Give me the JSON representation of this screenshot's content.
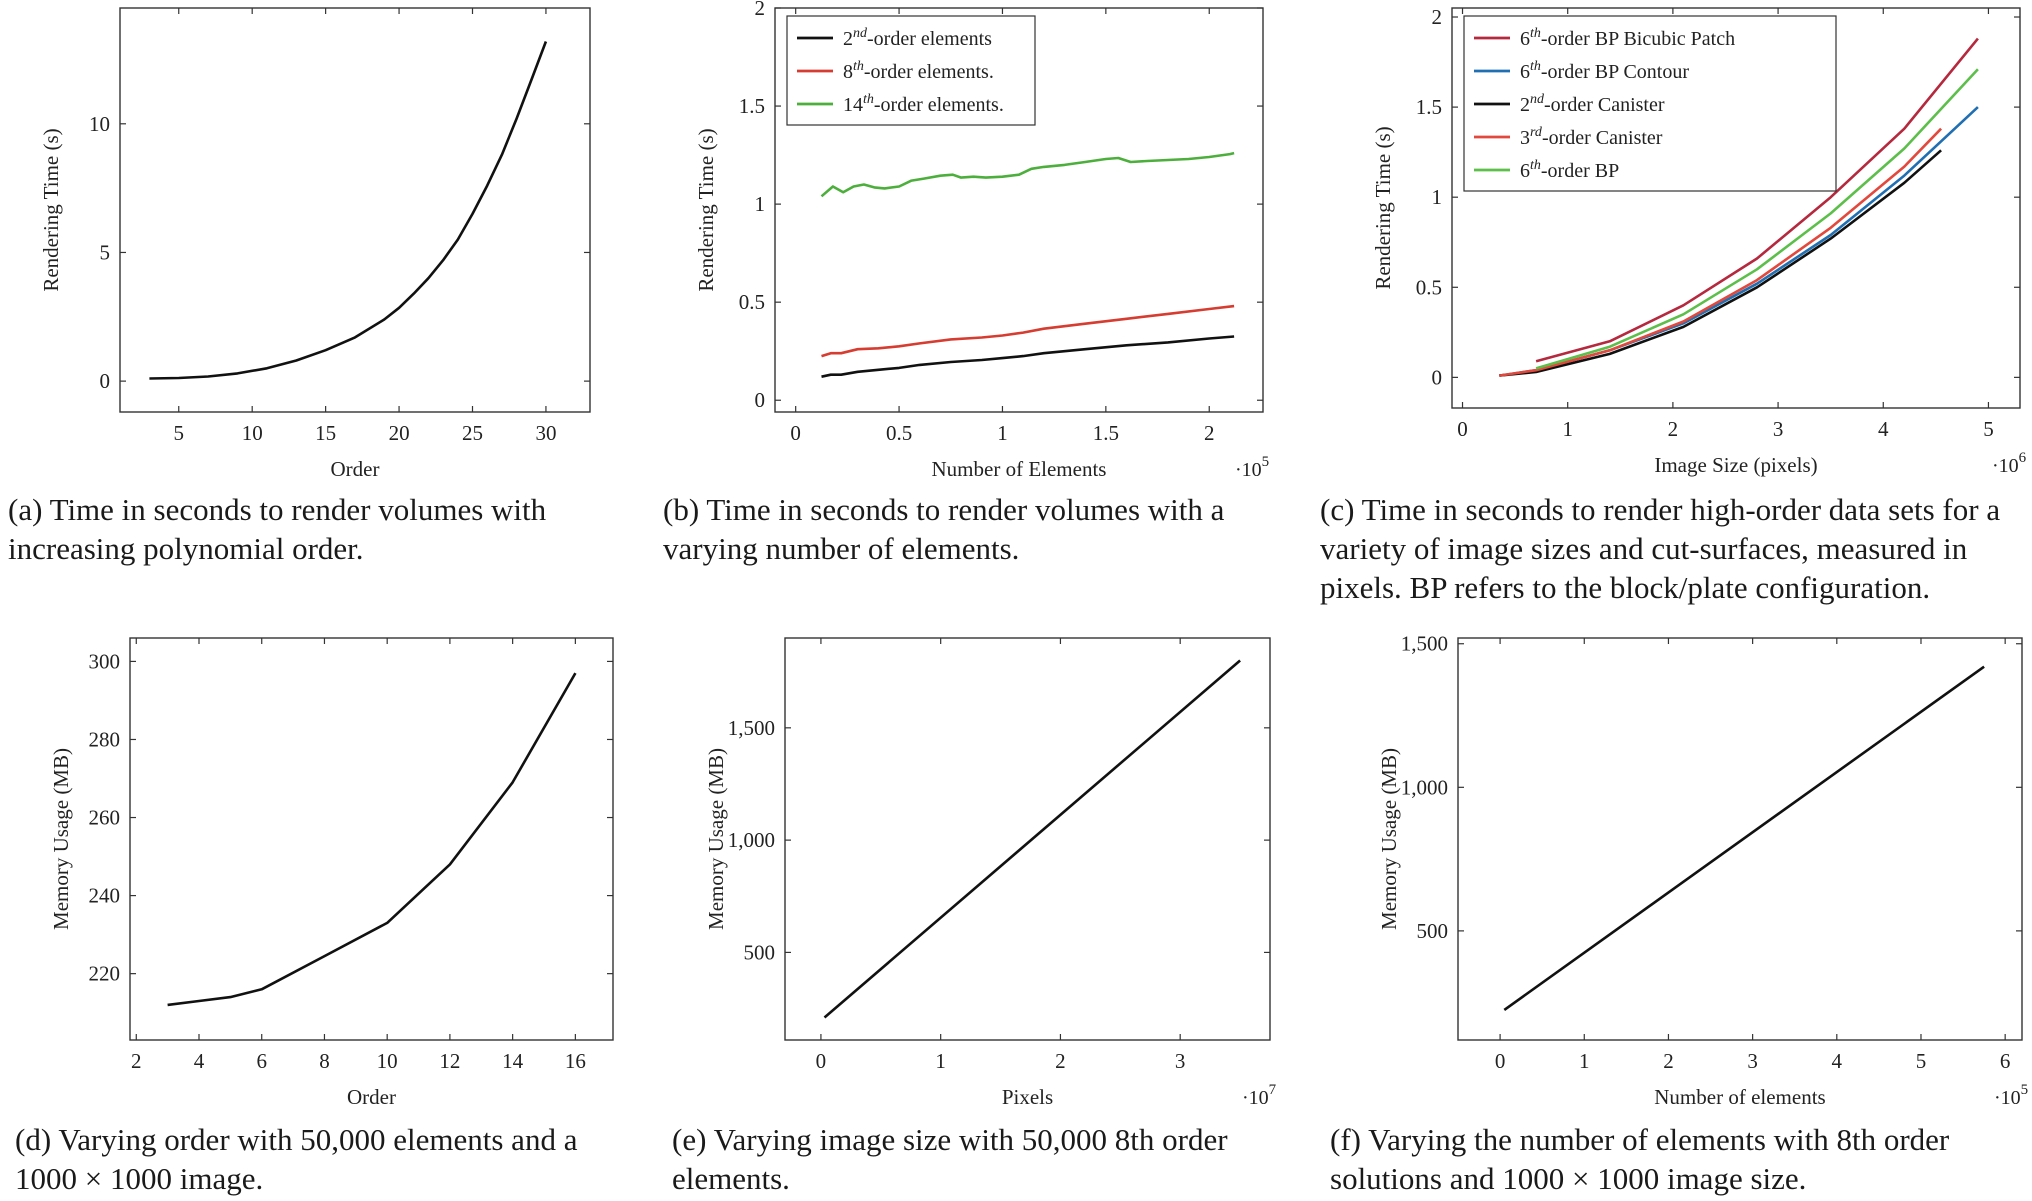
{
  "figure": {
    "panels": [
      {
        "caption": "(a) Time in seconds to render volumes with increasing polynomial order.",
        "chart_data": {
          "type": "line",
          "xlabel": "Order",
          "ylabel": "Rendering Time (s)",
          "xlim": [
            1,
            33
          ],
          "ylim": [
            -1.2,
            14.5
          ],
          "xticks": [
            5,
            10,
            15,
            20,
            25,
            30
          ],
          "xtick_labels": [
            "5",
            "10",
            "15",
            "20",
            "25",
            "30"
          ],
          "yticks": [
            0,
            5,
            10
          ],
          "ytick_labels": [
            "0",
            "5",
            "10"
          ],
          "x_exponent": "",
          "legend": null,
          "series": [
            {
              "name": "",
              "color": "#111111",
              "x": [
                3,
                5,
                7,
                9,
                11,
                13,
                15,
                17,
                19,
                20,
                21,
                22,
                23,
                24,
                25,
                26,
                27,
                28,
                29,
                30
              ],
              "y": [
                0.1,
                0.12,
                0.18,
                0.3,
                0.5,
                0.8,
                1.2,
                1.7,
                2.4,
                2.85,
                3.4,
                4.0,
                4.7,
                5.5,
                6.5,
                7.6,
                8.8,
                10.2,
                11.7,
                13.2
              ]
            }
          ]
        }
      },
      {
        "caption": "(b) Time in seconds to render volumes with a varying number of elements.",
        "chart_data": {
          "type": "line",
          "xlabel": "Number of Elements",
          "ylabel": "Rendering Time (s)",
          "xlim": [
            -0.1,
            2.26
          ],
          "ylim": [
            -0.06,
            2.0
          ],
          "xticks": [
            0,
            0.5,
            1,
            1.5,
            2
          ],
          "xtick_labels": [
            "0",
            "0.5",
            "1",
            "1.5",
            "2"
          ],
          "yticks": [
            0,
            0.5,
            1,
            1.5,
            2
          ],
          "ytick_labels": [
            "0",
            "0.5",
            "1",
            "1.5",
            "2"
          ],
          "x_exponent": "·10",
          "x_exponent_power": "5",
          "legend": {
            "placement": "top-left",
            "entries": [
              {
                "pre": "2",
                "sup": "nd",
                "post": "-order elements"
              },
              {
                "pre": "8",
                "sup": "th",
                "post": "-order elements."
              },
              {
                "pre": "14",
                "sup": "th",
                "post": "-order elements."
              }
            ]
          },
          "series": [
            {
              "name": "2nd-order elements",
              "color": "#111111",
              "x": [
                0.125,
                0.17,
                0.22,
                0.3,
                0.4,
                0.5,
                0.6,
                0.75,
                0.9,
                1.0,
                1.1,
                1.2,
                1.4,
                1.6,
                1.8,
                2.0,
                2.12
              ],
              "y": [
                0.12,
                0.13,
                0.13,
                0.145,
                0.155,
                0.165,
                0.18,
                0.195,
                0.205,
                0.215,
                0.225,
                0.24,
                0.26,
                0.28,
                0.295,
                0.315,
                0.325
              ]
            },
            {
              "name": "8th-order elements.",
              "color": "#d63c2f",
              "x": [
                0.125,
                0.17,
                0.22,
                0.3,
                0.4,
                0.5,
                0.6,
                0.75,
                0.9,
                1.0,
                1.1,
                1.2,
                1.4,
                1.6,
                1.8,
                2.0,
                2.12
              ],
              "y": [
                0.225,
                0.24,
                0.24,
                0.26,
                0.265,
                0.275,
                0.29,
                0.31,
                0.32,
                0.33,
                0.345,
                0.365,
                0.39,
                0.415,
                0.44,
                0.465,
                0.48
              ]
            },
            {
              "name": "14th-order elements.",
              "color": "#4caf3c",
              "x": [
                0.125,
                0.18,
                0.23,
                0.28,
                0.33,
                0.38,
                0.43,
                0.5,
                0.56,
                0.62,
                0.7,
                0.76,
                0.8,
                0.86,
                0.92,
                1.0,
                1.08,
                1.14,
                1.2,
                1.3,
                1.4,
                1.5,
                1.56,
                1.62,
                1.7,
                1.8,
                1.9,
                2.0,
                2.1,
                2.12
              ],
              "y": [
                1.04,
                1.09,
                1.06,
                1.09,
                1.1,
                1.085,
                1.08,
                1.09,
                1.12,
                1.13,
                1.145,
                1.15,
                1.135,
                1.14,
                1.135,
                1.14,
                1.15,
                1.18,
                1.19,
                1.2,
                1.215,
                1.23,
                1.235,
                1.215,
                1.22,
                1.225,
                1.23,
                1.24,
                1.255,
                1.26
              ]
            }
          ]
        }
      },
      {
        "caption": "(c) Time in seconds to render high-order data sets for a variety of image sizes and cut-surfaces, measured in pixels. BP refers to the block/plate configuration.",
        "chart_data": {
          "type": "line",
          "xlabel": "Image Size (pixels)",
          "ylabel": "Rendering Time (s)",
          "xlim": [
            -0.1,
            5.3
          ],
          "ylim": [
            -0.17,
            2.05
          ],
          "xticks": [
            0,
            1,
            2,
            3,
            4,
            5
          ],
          "xtick_labels": [
            "0",
            "1",
            "2",
            "3",
            "4",
            "5"
          ],
          "yticks": [
            0,
            0.5,
            1,
            1.5,
            2
          ],
          "ytick_labels": [
            "0",
            "0.5",
            "1",
            "1.5",
            "2"
          ],
          "x_exponent": "·10",
          "x_exponent_power": "6",
          "legend": {
            "placement": "top-left",
            "entries": [
              {
                "pre": "6",
                "sup": "th",
                "post": "-order BP Bicubic Patch"
              },
              {
                "pre": "6",
                "sup": "th",
                "post": "-order BP Contour"
              },
              {
                "pre": "2",
                "sup": "nd",
                "post": "-order Canister"
              },
              {
                "pre": "3",
                "sup": "rd",
                "post": "-order Canister"
              },
              {
                "pre": "6",
                "sup": "th",
                "post": "-order BP"
              }
            ]
          },
          "series": [
            {
              "name": "6th-order BP Bicubic Patch",
              "color": "#b5283d",
              "x": [
                0.7,
                1.4,
                2.1,
                2.8,
                3.5,
                4.2,
                4.9
              ],
              "y": [
                0.09,
                0.2,
                0.4,
                0.66,
                1.0,
                1.38,
                1.88
              ]
            },
            {
              "name": "6th-order BP Contour",
              "color": "#1f6fb2",
              "x": [
                0.35,
                0.7,
                1.4,
                2.1,
                2.8,
                3.5,
                4.2,
                4.9
              ],
              "y": [
                0.01,
                0.04,
                0.15,
                0.3,
                0.52,
                0.79,
                1.12,
                1.5
              ]
            },
            {
              "name": "2nd-order Canister",
              "color": "#111111",
              "x": [
                0.35,
                0.7,
                1.4,
                2.1,
                2.8,
                3.5,
                4.2,
                4.55
              ],
              "y": [
                0.01,
                0.03,
                0.13,
                0.28,
                0.5,
                0.77,
                1.08,
                1.26
              ]
            },
            {
              "name": "3rd-order Canister",
              "color": "#e2483c",
              "x": [
                0.35,
                0.7,
                1.4,
                2.1,
                2.8,
                3.5,
                4.2,
                4.55
              ],
              "y": [
                0.01,
                0.04,
                0.15,
                0.31,
                0.54,
                0.83,
                1.17,
                1.38
              ]
            },
            {
              "name": "6th-order BP",
              "color": "#5cbf4a",
              "x": [
                0.7,
                1.4,
                2.1,
                2.8,
                3.5,
                4.2,
                4.9
              ],
              "y": [
                0.05,
                0.17,
                0.35,
                0.6,
                0.91,
                1.27,
                1.71
              ]
            }
          ]
        }
      },
      {
        "caption": "(d) Varying order with 50,000 elements and a 1000 × 1000 image.",
        "chart_data": {
          "type": "line",
          "xlabel": "Order",
          "ylabel": "Memory Usage (MB)",
          "xlim": [
            1.8,
            17.2
          ],
          "ylim": [
            203,
            306
          ],
          "xticks": [
            2,
            4,
            6,
            8,
            10,
            12,
            14,
            16
          ],
          "xtick_labels": [
            "2",
            "4",
            "6",
            "8",
            "10",
            "12",
            "14",
            "16"
          ],
          "yticks": [
            220,
            240,
            260,
            280,
            300
          ],
          "ytick_labels": [
            "220",
            "240",
            "260",
            "280",
            "300"
          ],
          "x_exponent": "",
          "legend": null,
          "series": [
            {
              "name": "",
              "color": "#111111",
              "x": [
                3,
                4,
                5,
                6,
                8,
                10,
                12,
                14,
                16
              ],
              "y": [
                212,
                213,
                214,
                216,
                224.5,
                233,
                248,
                269,
                297
              ]
            }
          ]
        }
      },
      {
        "caption": "(e) Varying image size with 50,000 8th order elements.",
        "chart_data": {
          "type": "line",
          "xlabel": "Pixels",
          "ylabel": "Memory Usage (MB)",
          "xlim": [
            -0.3,
            3.75
          ],
          "ylim": [
            110,
            1900
          ],
          "xticks": [
            0,
            1,
            2,
            3
          ],
          "xtick_labels": [
            "0",
            "1",
            "2",
            "3"
          ],
          "yticks": [
            500,
            1000,
            1500
          ],
          "ytick_labels": [
            "500",
            "1,000",
            "1,500"
          ],
          "x_exponent": "·10",
          "x_exponent_power": "7",
          "legend": null,
          "series": [
            {
              "name": "",
              "color": "#111111",
              "x": [
                0.03,
                3.5
              ],
              "y": [
                210,
                1800
              ]
            }
          ]
        }
      },
      {
        "caption": "(f) Varying the number of elements with 8th order solutions and 1000 × 1000 image size.",
        "chart_data": {
          "type": "line",
          "xlabel": "Number of elements",
          "ylabel": "Memory Usage (MB)",
          "xlim": [
            -0.5,
            6.2
          ],
          "ylim": [
            120,
            1520
          ],
          "xticks": [
            0,
            1,
            2,
            3,
            4,
            5,
            6
          ],
          "xtick_labels": [
            "0",
            "1",
            "2",
            "3",
            "4",
            "5",
            "6"
          ],
          "yticks": [
            500,
            1000,
            1500
          ],
          "ytick_labels": [
            "500",
            "1,000",
            "1,500"
          ],
          "x_exponent": "·10",
          "x_exponent_power": "5",
          "legend": null,
          "series": [
            {
              "name": "",
              "color": "#111111",
              "x": [
                0.05,
                5.75
              ],
              "y": [
                225,
                1420
              ]
            }
          ]
        }
      }
    ]
  }
}
